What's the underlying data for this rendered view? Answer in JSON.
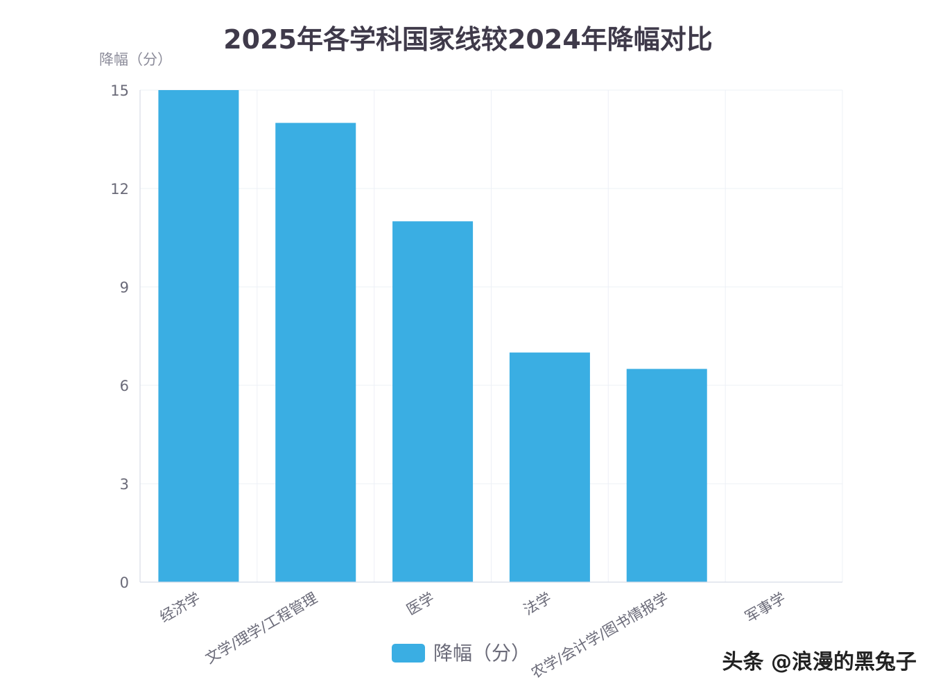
{
  "chart_data": {
    "type": "bar",
    "title": "2025年各学科国家线较2024年降幅对比",
    "ylabel": "降幅（分）",
    "xlabel": "",
    "categories": [
      "经济学",
      "文学/理学/工程管理",
      "医学",
      "法学",
      "农学/会计学/图书情报学",
      "军事学"
    ],
    "series": [
      {
        "name": "降幅（分）",
        "values": [
          15,
          14,
          11,
          7,
          6.5,
          0
        ],
        "color": "#3aaee3"
      }
    ],
    "ylim": [
      0,
      15
    ],
    "yticks": [
      0,
      3,
      6,
      9,
      12,
      15
    ],
    "grid": true,
    "legend_position": "bottom-center",
    "xtick_rotation": -30
  },
  "watermark": "头条 @浪漫的黑兔子"
}
